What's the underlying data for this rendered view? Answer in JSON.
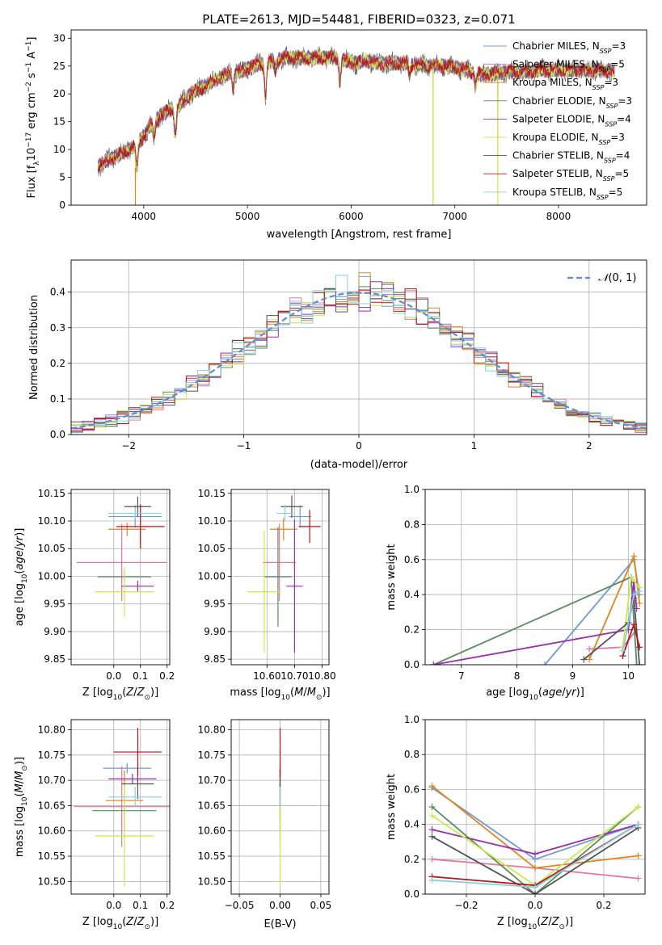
{
  "colors": {
    "series": [
      "#6c9bd2",
      "#e5779d",
      "#e0851e",
      "#5a8a5e",
      "#9b2fae",
      "#cce84c",
      "#555555",
      "#b21616",
      "#86d2dc"
    ]
  },
  "chart_data": [
    {
      "id": "spectrum",
      "type": "line",
      "title": "PLATE=2613, MJD=54481, FIBERID=0323, z=0.071",
      "xlabel": "wavelength [Angstrom, rest frame]",
      "ylabel": "Flux [f_λ 10^-17 erg cm^-2 s^-1 A^-1]",
      "xlim": [
        3300,
        8850
      ],
      "ylim": [
        0,
        31.5
      ],
      "xticks": [
        4000,
        5000,
        6000,
        7000,
        8000
      ],
      "yticks": [
        0,
        5,
        10,
        15,
        20,
        25,
        30
      ],
      "grid": false,
      "legend_position": "top-right",
      "legend": [
        "Chabrier MILES, N_SSP=3",
        "Salpeter MILES, N_SSP=5",
        "Kroupa MILES, N_SSP=3",
        "Chabrier ELODIE, N_SSP=3",
        "Salpeter ELODIE, N_SSP=4",
        "Kroupa ELODIE, N_SSP=3",
        "Chabrier STELIB, N_SSP=4",
        "Salpeter STELIB, N_SSP=5",
        "Kroupa STELIB, N_SSP=5"
      ],
      "continuum": {
        "x": [
          3560,
          3650,
          3750,
          3850,
          3950,
          4050,
          4150,
          4250,
          4350,
          4450,
          4550,
          4650,
          4750,
          4850,
          4950,
          5050,
          5150,
          5250,
          5350,
          5450,
          5550,
          5650,
          5750,
          5850,
          5950,
          6050,
          6150,
          6250,
          6350,
          6450,
          6550,
          6650,
          6750,
          6850,
          6950,
          7050,
          7150,
          7250,
          7350,
          7450,
          7550,
          7650,
          7750,
          7850,
          7950,
          8050,
          8150,
          8250,
          8350,
          8450,
          8540
        ],
        "y": [
          7,
          8,
          9,
          10,
          11,
          14,
          16,
          17,
          18,
          20,
          21,
          22,
          23,
          24,
          24,
          25,
          25.5,
          26,
          26.5,
          26.5,
          26.5,
          26.5,
          26.5,
          26.5,
          26,
          25.5,
          26,
          25.5,
          25.5,
          25.5,
          25.5,
          25.2,
          25,
          25,
          25,
          24.5,
          24,
          23.5,
          23.5,
          24,
          24,
          24,
          24,
          24.3,
          24.3,
          24.3,
          24.3,
          24.3,
          24.3,
          24.3,
          24
        ]
      },
      "absorption_features": [
        {
          "x": 3934,
          "depth": 4
        },
        {
          "x": 4101,
          "depth": 3
        },
        {
          "x": 4305,
          "depth": 5
        },
        {
          "x": 4861,
          "depth": 3
        },
        {
          "x": 5175,
          "depth": 6
        },
        {
          "x": 5270,
          "depth": 2
        },
        {
          "x": 5893,
          "depth": 4
        },
        {
          "x": 6563,
          "depth": 2
        },
        {
          "x": 7200,
          "depth": 2
        }
      ],
      "masked_drops": [
        3920,
        6790,
        7415
      ]
    },
    {
      "id": "residuals",
      "type": "histogram",
      "xlabel": "(data-model)/error",
      "ylabel": "Normed distribution",
      "xlim": [
        -2.5,
        2.5
      ],
      "ylim": [
        0,
        0.49
      ],
      "xticks": [
        -2,
        -1,
        0,
        1,
        2
      ],
      "yticks": [
        0,
        0.1,
        0.2,
        0.3,
        0.4
      ],
      "grid": true,
      "legend_position": "top-right",
      "reference_curve": {
        "label": "N(0,1)",
        "mean": 0,
        "sigma": 1
      }
    },
    {
      "id": "age-vs-z",
      "type": "scatter",
      "xlabel": "Z [log10(Z/Z⊙)]",
      "ylabel": "age [log10(age/yr)]",
      "xlim": [
        -0.16,
        0.21
      ],
      "ylim": [
        9.84,
        10.157
      ],
      "xticks": [
        0.0,
        0.1,
        0.2
      ],
      "yticks": [
        9.85,
        9.9,
        9.95,
        10.0,
        10.05,
        10.1,
        10.15
      ],
      "grid": true,
      "points": [
        {
          "x": 0.08,
          "y": 10.108,
          "xerr": 0.1,
          "yerr": 0.02
        },
        {
          "x": 0.03,
          "y": 10.025,
          "xerr": 0.17,
          "yerr": 0.07
        },
        {
          "x": 0.05,
          "y": 10.085,
          "xerr": 0.07,
          "yerr": 0.012
        },
        {
          "x": 0.04,
          "y": 9.999,
          "xerr": 0.1,
          "yerr": 0.008
        },
        {
          "x": 0.09,
          "y": 9.982,
          "xerr": 0.06,
          "yerr": 0.01
        },
        {
          "x": 0.04,
          "y": 9.972,
          "xerr": 0.11,
          "yerr": 0.045
        },
        {
          "x": 0.09,
          "y": 10.126,
          "xerr": 0.05,
          "yerr": 0.018
        },
        {
          "x": 0.1,
          "y": 10.09,
          "xerr": 0.09,
          "yerr": 0.04
        },
        {
          "x": 0.08,
          "y": 10.114,
          "xerr": 0.1,
          "yerr": 0.01
        }
      ]
    },
    {
      "id": "age-vs-mass",
      "type": "scatter",
      "xlabel": "mass [log10(M/M⊙)]",
      "ylabel": "",
      "xlim": [
        10.47,
        10.825
      ],
      "ylim": [
        9.84,
        10.157
      ],
      "xticks": [
        10.6,
        10.7,
        10.8
      ],
      "yticks": [
        9.85,
        9.9,
        9.95,
        10.0,
        10.05,
        10.1,
        10.15
      ],
      "grid": true,
      "points": [
        {
          "x": 10.72,
          "y": 10.108,
          "xerr": 0.04,
          "yerr": 0.02
        },
        {
          "x": 10.645,
          "y": 10.025,
          "xerr": 0.06,
          "yerr": 0.07
        },
        {
          "x": 10.66,
          "y": 10.085,
          "xerr": 0.05,
          "yerr": 0.02
        },
        {
          "x": 10.64,
          "y": 9.999,
          "xerr": 0.05,
          "yerr": 0.09
        },
        {
          "x": 10.7,
          "y": 9.982,
          "xerr": 0.03,
          "yerr": 0.12
        },
        {
          "x": 10.59,
          "y": 9.972,
          "xerr": 0.06,
          "yerr": 0.11
        },
        {
          "x": 10.69,
          "y": 10.126,
          "xerr": 0.04,
          "yerr": 0.02
        },
        {
          "x": 10.755,
          "y": 10.09,
          "xerr": 0.04,
          "yerr": 0.03
        },
        {
          "x": 10.665,
          "y": 10.114,
          "xerr": 0.03,
          "yerr": 0.015
        }
      ]
    },
    {
      "id": "mass-weight-vs-age",
      "type": "line",
      "xlabel": "age [log10(age/yr)]",
      "ylabel": "mass weight",
      "xlim": [
        6.35,
        10.3
      ],
      "ylim": [
        0,
        1.0
      ],
      "xticks": [
        7,
        8,
        9,
        10
      ],
      "yticks": [
        0.0,
        0.2,
        0.4,
        0.6,
        0.8,
        1.0
      ],
      "grid": true,
      "series": [
        {
          "x": [
            8.5,
            10.1,
            10.2
          ],
          "y": [
            0.0,
            0.6,
            0.4
          ]
        },
        {
          "x": [
            9.3,
            9.9,
            10.15
          ],
          "y": [
            0.09,
            0.1,
            0.2
          ]
        },
        {
          "x": [
            9.3,
            10.1,
            10.2
          ],
          "y": [
            0.03,
            0.62,
            0.35
          ]
        },
        {
          "x": [
            6.5,
            10.05,
            10.15
          ],
          "y": [
            0.0,
            0.5,
            0.0
          ]
        },
        {
          "x": [
            6.5,
            10.0,
            10.1,
            10.15
          ],
          "y": [
            0.0,
            0.2,
            0.47,
            0.32
          ]
        },
        {
          "x": [
            9.9,
            10.05,
            10.2
          ],
          "y": [
            0.1,
            0.5,
            0.44
          ]
        },
        {
          "x": [
            9.2,
            10.0,
            10.1,
            10.2
          ],
          "y": [
            0.03,
            0.24,
            0.38,
            0.0
          ]
        },
        {
          "x": [
            9.9,
            10.1,
            10.2
          ],
          "y": [
            0.05,
            0.23,
            0.1
          ]
        },
        {
          "x": [
            9.9,
            10.1,
            10.2
          ],
          "y": [
            0.08,
            0.4,
            0.42
          ]
        }
      ]
    },
    {
      "id": "mass-vs-z",
      "type": "scatter",
      "xlabel": "Z [log10(Z/Z⊙)]",
      "ylabel": "mass [log10(M/M⊙)]",
      "xlim": [
        -0.16,
        0.21
      ],
      "ylim": [
        10.475,
        10.82
      ],
      "xticks": [
        0.0,
        0.1,
        0.2
      ],
      "yticks": [
        10.5,
        10.55,
        10.6,
        10.65,
        10.7,
        10.75,
        10.8
      ],
      "grid": true,
      "points": [
        {
          "x": 0.05,
          "y": 10.724,
          "xerr": 0.09,
          "yerr": 0.01
        },
        {
          "x": 0.03,
          "y": 10.648,
          "xerr": 0.18,
          "yerr": 0.08
        },
        {
          "x": 0.04,
          "y": 10.66,
          "xerr": 0.07,
          "yerr": 0.06
        },
        {
          "x": 0.04,
          "y": 10.64,
          "xerr": 0.12,
          "yerr": 0.01
        },
        {
          "x": 0.07,
          "y": 10.703,
          "xerr": 0.09,
          "yerr": 0.01
        },
        {
          "x": 0.04,
          "y": 10.59,
          "xerr": 0.11,
          "yerr": 0.1
        },
        {
          "x": 0.09,
          "y": 10.693,
          "xerr": 0.06,
          "yerr": 0.03
        },
        {
          "x": 0.09,
          "y": 10.756,
          "xerr": 0.09,
          "yerr": 0.048
        },
        {
          "x": 0.08,
          "y": 10.667,
          "xerr": 0.1,
          "yerr": 0.02
        }
      ]
    },
    {
      "id": "mass-vs-ebv",
      "type": "scatter",
      "xlabel": "E(B-V)",
      "ylabel": "",
      "xlim": [
        -0.06,
        0.06
      ],
      "ylim": [
        10.475,
        10.82
      ],
      "xticks": [
        -0.05,
        0.0,
        0.05
      ],
      "yticks": [
        10.5,
        10.55,
        10.6,
        10.65,
        10.7,
        10.75,
        10.8
      ],
      "grid": true,
      "points": [
        {
          "x": 0.0,
          "y": 10.72,
          "xerr": 0,
          "yerr": 0.02
        },
        {
          "x": 0.0,
          "y": 10.65,
          "xerr": 0,
          "yerr": 0.07
        },
        {
          "x": 0.0,
          "y": 10.66,
          "xerr": 0,
          "yerr": 0.06
        },
        {
          "x": 0.0,
          "y": 10.64,
          "xerr": 0,
          "yerr": 0.02
        },
        {
          "x": 0.0,
          "y": 10.7,
          "xerr": 0,
          "yerr": 0.02
        },
        {
          "x": 0.0,
          "y": 10.59,
          "xerr": 0,
          "yerr": 0.1
        },
        {
          "x": 0.0,
          "y": 10.69,
          "xerr": 0,
          "yerr": 0.03
        },
        {
          "x": 0.0,
          "y": 10.756,
          "xerr": 0,
          "yerr": 0.048
        },
        {
          "x": 0.0,
          "y": 10.667,
          "xerr": 0,
          "yerr": 0.02
        }
      ]
    },
    {
      "id": "mass-weight-vs-z",
      "type": "line",
      "xlabel": "Z [log10(Z/Z⊙)]",
      "ylabel": "mass weight",
      "xlim": [
        -0.32,
        0.32
      ],
      "ylim": [
        0,
        1.0
      ],
      "xticks": [
        -0.2,
        0.0,
        0.2
      ],
      "yticks": [
        0.0,
        0.2,
        0.4,
        0.6,
        0.8,
        1.0
      ],
      "grid": true,
      "series": [
        {
          "x": [
            -0.3,
            0.0,
            0.3
          ],
          "y": [
            0.61,
            0.2,
            0.4
          ]
        },
        {
          "x": [
            -0.3,
            0.0,
            0.3
          ],
          "y": [
            0.2,
            0.15,
            0.09
          ]
        },
        {
          "x": [
            -0.3,
            0.0,
            0.3
          ],
          "y": [
            0.62,
            0.15,
            0.22
          ]
        },
        {
          "x": [
            -0.3,
            0.0,
            0.3
          ],
          "y": [
            0.5,
            0.0,
            0.5
          ]
        },
        {
          "x": [
            -0.3,
            0.0,
            0.3
          ],
          "y": [
            0.37,
            0.23,
            0.4
          ]
        },
        {
          "x": [
            -0.3,
            0.0,
            0.3
          ],
          "y": [
            0.45,
            0.05,
            0.5
          ]
        },
        {
          "x": [
            -0.3,
            0.0,
            0.3
          ],
          "y": [
            0.33,
            0.0,
            0.38
          ]
        },
        {
          "x": [
            -0.3,
            0.0,
            0.3
          ],
          "y": [
            0.1,
            0.05,
            0.4
          ]
        },
        {
          "x": [
            -0.3,
            0.0,
            0.3
          ],
          "y": [
            0.08,
            0.04,
            0.4
          ]
        }
      ]
    }
  ]
}
